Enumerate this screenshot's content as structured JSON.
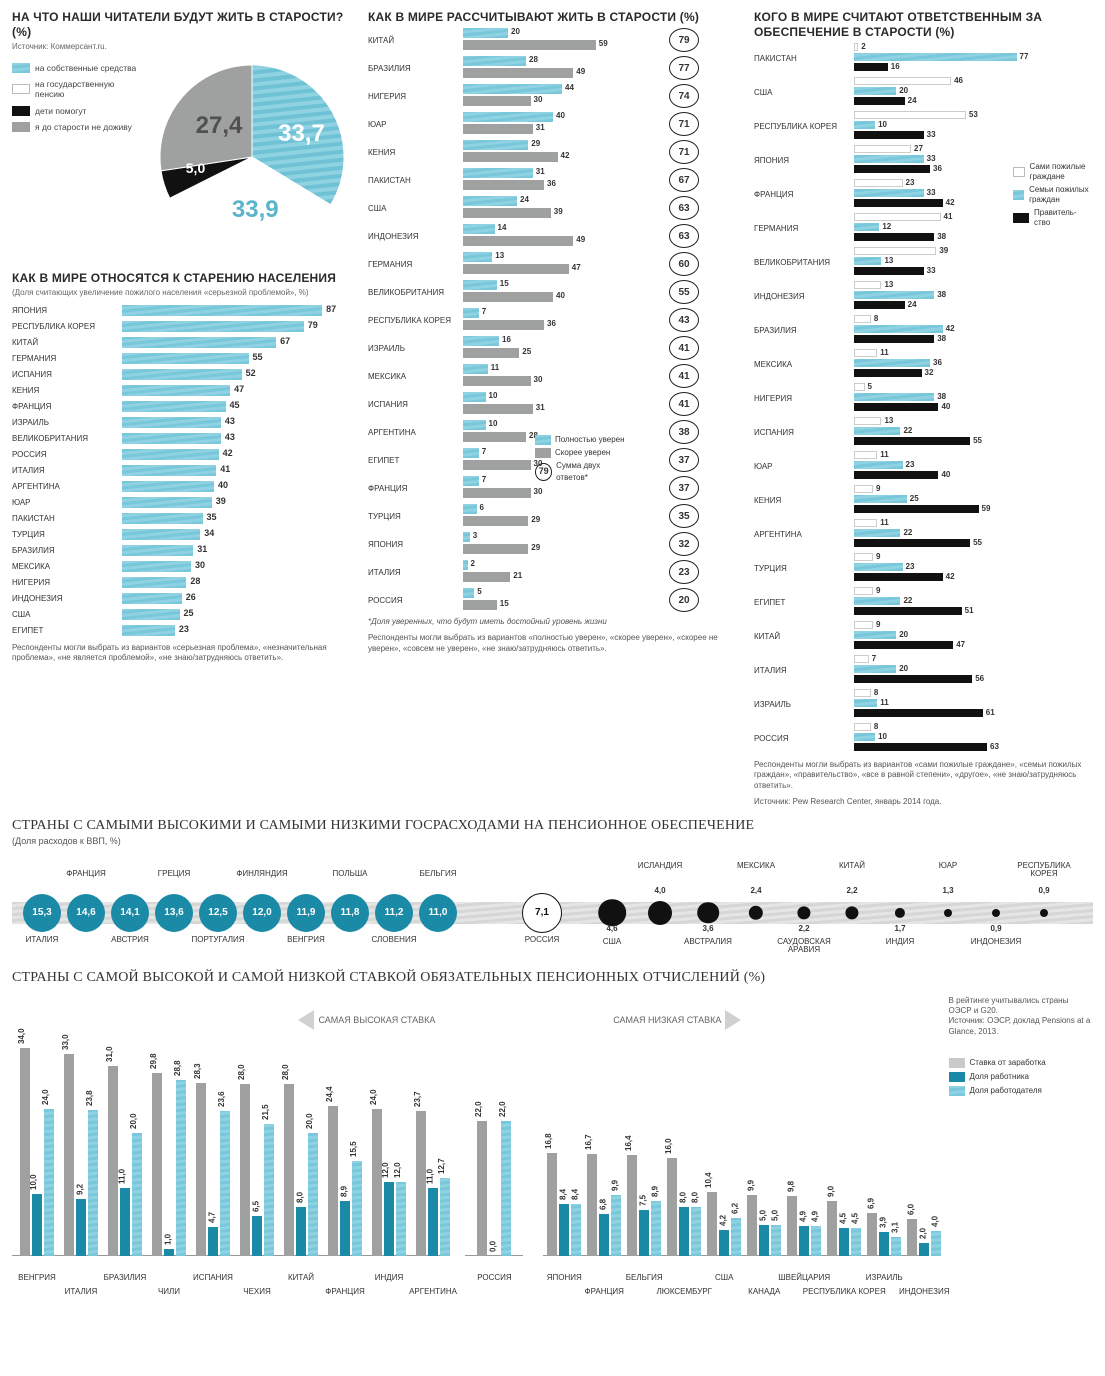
{
  "colors": {
    "wave": "#78c7db",
    "wave_light": "#8fd2e2",
    "gray": "#9ea1a0",
    "black": "#111111",
    "white": "#ffffff",
    "blue_solid": "#1b8aa6",
    "bg": "#ffffff",
    "text": "#333333"
  },
  "pie": {
    "title": "НА ЧТО НАШИ ЧИТАТЕЛИ БУДУТ ЖИТЬ В СТАРОСТИ? (%)",
    "source": "Источник: Коммерсант.ru.",
    "slices": [
      {
        "label": "на собственные средства",
        "value": 33.7,
        "fill": "wave"
      },
      {
        "label": "на государственную пенсию",
        "value": 33.9,
        "fill": "white"
      },
      {
        "label": "дети помогут",
        "value": 5.0,
        "fill": "black"
      },
      {
        "label": "я до старости не доживу",
        "value": 27.4,
        "fill": "gray"
      }
    ]
  },
  "aging": {
    "title": "КАК В МИРЕ ОТНОСЯТСЯ К СТАРЕНИЮ НАСЕЛЕНИЯ",
    "sub": "(Доля считающих увеличение пожилого населения «серьезной проблемой», %)",
    "max": 100,
    "bars": [
      {
        "c": "ЯПОНИЯ",
        "v": 87
      },
      {
        "c": "РЕСПУБЛИКА КОРЕЯ",
        "v": 79
      },
      {
        "c": "КИТАЙ",
        "v": 67
      },
      {
        "c": "ГЕРМАНИЯ",
        "v": 55
      },
      {
        "c": "ИСПАНИЯ",
        "v": 52
      },
      {
        "c": "КЕНИЯ",
        "v": 47
      },
      {
        "c": "ФРАНЦИЯ",
        "v": 45
      },
      {
        "c": "ИЗРАИЛЬ",
        "v": 43
      },
      {
        "c": "ВЕЛИКОБРИТАНИЯ",
        "v": 43
      },
      {
        "c": "РОССИЯ",
        "v": 42
      },
      {
        "c": "ИТАЛИЯ",
        "v": 41
      },
      {
        "c": "АРГЕНТИНА",
        "v": 40
      },
      {
        "c": "ЮАР",
        "v": 39
      },
      {
        "c": "ПАКИСТАН",
        "v": 35
      },
      {
        "c": "ТУРЦИЯ",
        "v": 34
      },
      {
        "c": "БРАЗИЛИЯ",
        "v": 31
      },
      {
        "c": "МЕКСИКА",
        "v": 30
      },
      {
        "c": "НИГЕРИЯ",
        "v": 28
      },
      {
        "c": "ИНДОНЕЗИЯ",
        "v": 26
      },
      {
        "c": "США",
        "v": 25
      },
      {
        "c": "ЕГИПЕТ",
        "v": 23
      }
    ],
    "footnote": "Респонденты могли выбрать из вариантов «серьезная проблема», «незначительная проблема», «не является проблемой», «не знаю/затрудняюсь ответить»."
  },
  "expect": {
    "title": "КАК В МИРЕ РАССЧИТЫВАЮТ ЖИТЬ В СТАРОСТИ (%)",
    "max": 80,
    "legend": {
      "a": "Полностью уверен",
      "b": "Скорее уверен",
      "sum": "Сумма двух ответов*",
      "sum_icon": "79"
    },
    "bars": [
      {
        "c": "КИТАЙ",
        "a": 20,
        "b": 59,
        "s": 79
      },
      {
        "c": "БРАЗИЛИЯ",
        "a": 28,
        "b": 49,
        "s": 77
      },
      {
        "c": "НИГЕРИЯ",
        "a": 44,
        "b": 30,
        "s": 74
      },
      {
        "c": "ЮАР",
        "a": 40,
        "b": 31,
        "s": 71
      },
      {
        "c": "КЕНИЯ",
        "a": 29,
        "b": 42,
        "s": 71
      },
      {
        "c": "ПАКИСТАН",
        "a": 31,
        "b": 36,
        "s": 67
      },
      {
        "c": "США",
        "a": 24,
        "b": 39,
        "s": 63
      },
      {
        "c": "ИНДОНЕЗИЯ",
        "a": 14,
        "b": 49,
        "s": 63
      },
      {
        "c": "ГЕРМАНИЯ",
        "a": 13,
        "b": 47,
        "s": 60
      },
      {
        "c": "ВЕЛИКОБРИТАНИЯ",
        "a": 15,
        "b": 40,
        "s": 55
      },
      {
        "c": "РЕСПУБЛИКА КОРЕЯ",
        "a": 7,
        "b": 36,
        "s": 43
      },
      {
        "c": "ИЗРАИЛЬ",
        "a": 16,
        "b": 25,
        "s": 41
      },
      {
        "c": "МЕКСИКА",
        "a": 11,
        "b": 30,
        "s": 41
      },
      {
        "c": "ИСПАНИЯ",
        "a": 10,
        "b": 31,
        "s": 41
      },
      {
        "c": "АРГЕНТИНА",
        "a": 10,
        "b": 28,
        "s": 38
      },
      {
        "c": "ЕГИПЕТ",
        "a": 7,
        "b": 30,
        "s": 37
      },
      {
        "c": "ФРАНЦИЯ",
        "a": 7,
        "b": 30,
        "s": 37
      },
      {
        "c": "ТУРЦИЯ",
        "a": 6,
        "b": 29,
        "s": 35
      },
      {
        "c": "ЯПОНИЯ",
        "a": 3,
        "b": 29,
        "s": 32
      },
      {
        "c": "ИТАЛИЯ",
        "a": 2,
        "b": 21,
        "s": 23
      },
      {
        "c": "РОССИЯ",
        "a": 5,
        "b": 15,
        "s": 20
      }
    ],
    "star": "*Доля уверенных, что будут иметь достойный уровень жизни",
    "footnote": "Респонденты могли выбрать из вариантов «полностью уверен», «скорее уверен», «скорее не уверен», «совсем не уверен», «не знаю/затрудняюсь ответить»."
  },
  "responsible": {
    "title": "КОГО В МИРЕ СЧИТАЮТ ОТВЕТСТВЕННЫМ ЗА ОБЕСПЕЧЕНИЕ В СТАРОСТИ (%)",
    "max": 90,
    "legend": {
      "a": "Сами пожилые граждане",
      "b": "Семьи пожилых граждан",
      "c": "Правитель-\nство"
    },
    "bars": [
      {
        "c": "ПАКИСТАН",
        "a": 2,
        "b": 77,
        "g": 16
      },
      {
        "c": "США",
        "a": 46,
        "b": 20,
        "g": 24
      },
      {
        "c": "РЕСПУБЛИКА КОРЕЯ",
        "a": 53,
        "b": 10,
        "g": 33
      },
      {
        "c": "ЯПОНИЯ",
        "a": 27,
        "b": 33,
        "g": 36
      },
      {
        "c": "ФРАНЦИЯ",
        "a": 23,
        "b": 33,
        "g": 42
      },
      {
        "c": "ГЕРМАНИЯ",
        "a": 41,
        "b": 12,
        "g": 38
      },
      {
        "c": "ВЕЛИКОБРИТАНИЯ",
        "a": 39,
        "b": 13,
        "g": 33
      },
      {
        "c": "ИНДОНЕЗИЯ",
        "a": 13,
        "b": 38,
        "g": 24
      },
      {
        "c": "БРАЗИЛИЯ",
        "a": 8,
        "b": 42,
        "g": 38
      },
      {
        "c": "МЕКСИКА",
        "a": 11,
        "b": 36,
        "g": 32
      },
      {
        "c": "НИГЕРИЯ",
        "a": 5,
        "b": 38,
        "g": 40
      },
      {
        "c": "ИСПАНИЯ",
        "a": 13,
        "b": 22,
        "g": 55
      },
      {
        "c": "ЮАР",
        "a": 11,
        "b": 23,
        "g": 40
      },
      {
        "c": "КЕНИЯ",
        "a": 9,
        "b": 25,
        "g": 59
      },
      {
        "c": "АРГЕНТИНА",
        "a": 11,
        "b": 22,
        "g": 55
      },
      {
        "c": "ТУРЦИЯ",
        "a": 9,
        "b": 23,
        "g": 42
      },
      {
        "c": "ЕГИПЕТ",
        "a": 9,
        "b": 22,
        "g": 51
      },
      {
        "c": "КИТАЙ",
        "a": 9,
        "b": 20,
        "g": 47
      },
      {
        "c": "ИТАЛИЯ",
        "a": 7,
        "b": 20,
        "g": 56
      },
      {
        "c": "ИЗРАИЛЬ",
        "a": 8,
        "b": 11,
        "g": 61
      },
      {
        "c": "РОССИЯ",
        "a": 8,
        "b": 10,
        "g": 63
      }
    ],
    "footnote": "Респонденты могли выбрать из вариантов «сами пожилые граждане», «семьи пожилых граждан», «правительство», «все в равной степени», «другое», «не знаю/затрудняюсь ответить».",
    "source": "Источник: Pew Research Center, январь 2014 года."
  },
  "gdp": {
    "title": "СТРАНЫ С САМЫМИ ВЫСОКИМИ И САМЫМИ НИЗКИМИ ГОСРАСХОДАМИ НА ПЕНСИОННОЕ ОБЕСПЕЧЕНИЕ",
    "sub": "(Доля расходов к ВВП, %)",
    "high": [
      {
        "c": "ИТАЛИЯ",
        "v": 15.3,
        "pos": "b"
      },
      {
        "c": "ФРАНЦИЯ",
        "v": 14.6,
        "pos": "t"
      },
      {
        "c": "АВСТРИЯ",
        "v": 14.1,
        "pos": "b"
      },
      {
        "c": "ГРЕЦИЯ",
        "v": 13.6,
        "pos": "t"
      },
      {
        "c": "ПОРТУГАЛИЯ",
        "v": 12.5,
        "pos": "b"
      },
      {
        "c": "ФИНЛЯНДИЯ",
        "v": 12.0,
        "pos": "t"
      },
      {
        "c": "ВЕНГРИЯ",
        "v": 11.9,
        "pos": "b"
      },
      {
        "c": "ПОЛЬША",
        "v": 11.8,
        "pos": "t"
      },
      {
        "c": "СЛОВЕНИЯ",
        "v": 11.2,
        "pos": "b"
      },
      {
        "c": "БЕЛЬГИЯ",
        "v": 11.0,
        "pos": "t"
      }
    ],
    "mid": {
      "c": "РОССИЯ",
      "v": 7.1
    },
    "low": [
      {
        "c": "США",
        "v": 4.6,
        "pos": "b"
      },
      {
        "c": "ИСЛАНДИЯ",
        "v": 4.0,
        "pos": "t"
      },
      {
        "c": "АВСТРАЛИЯ",
        "v": 3.6,
        "pos": "b"
      },
      {
        "c": "МЕКСИКА",
        "v": 2.4,
        "pos": "t"
      },
      {
        "c": "САУДОВСКАЯ АРАВИЯ",
        "v": 2.2,
        "pos": "b"
      },
      {
        "c": "КИТАЙ",
        "v": 2.2,
        "pos": "t"
      },
      {
        "c": "ИНДИЯ",
        "v": 1.7,
        "pos": "b"
      },
      {
        "c": "ЮАР",
        "v": 1.3,
        "pos": "t"
      },
      {
        "c": "ИНДОНЕЗИЯ",
        "v": 0.9,
        "pos": "b"
      },
      {
        "c": "РЕСПУБЛИКА КОРЕЯ",
        "v": 0.9,
        "pos": "t"
      }
    ]
  },
  "rates": {
    "title": "СТРАНЫ С САМОЙ ВЫСОКОЙ И САМОЙ НИЗКОЙ СТАВКОЙ ОБЯЗАТЕЛЬНЫХ ПЕНСИОННЫХ ОТЧИСЛЕНИЙ (%)",
    "max": 36,
    "legend": {
      "total": "Ставка от заработка",
      "worker": "Доля работника",
      "employer": "Доля работодателя"
    },
    "high_label": "САМАЯ ВЫСОКАЯ СТАВКА",
    "low_label": "САМАЯ НИЗКАЯ СТАВКА",
    "note": "В рейтинге учитывались страны ОЭСР и G20.\nИсточник: ОЭСР, доклад Pensions at a Glance, 2013.",
    "high": [
      {
        "c": "ВЕНГРИЯ",
        "t": 34.0,
        "w": 10.0,
        "e": 24.0,
        "pos": "b"
      },
      {
        "c": "ИТАЛИЯ",
        "t": 33.0,
        "w": 9.2,
        "e": 23.8,
        "pos": "t"
      },
      {
        "c": "БРАЗИЛИЯ",
        "t": 31.0,
        "w": 11.0,
        "e": 20.0,
        "pos": "b"
      },
      {
        "c": "ЧИЛИ",
        "t": 29.8,
        "w": 1.0,
        "e": 28.8,
        "pos": "t"
      },
      {
        "c": "ИСПАНИЯ",
        "t": 28.3,
        "w": 4.7,
        "e": 23.6,
        "pos": "b"
      },
      {
        "c": "ЧЕХИЯ",
        "t": 28.0,
        "w": 6.5,
        "e": 21.5,
        "pos": "t"
      },
      {
        "c": "КИТАЙ",
        "t": 28.0,
        "w": 8.0,
        "e": 20.0,
        "pos": "b"
      },
      {
        "c": "ФРАНЦИЯ",
        "t": 24.4,
        "w": 8.9,
        "e": 15.5,
        "pos": "t"
      },
      {
        "c": "ИНДИЯ",
        "t": 24.0,
        "w": 12.0,
        "e": 12.0,
        "pos": "b"
      },
      {
        "c": "АРГЕНТИНА",
        "t": 23.7,
        "w": 11.0,
        "e": 12.7,
        "pos": "t"
      }
    ],
    "mid": {
      "c": "РОССИЯ",
      "t": 22.0,
      "w": 0.0,
      "e": 22.0
    },
    "low": [
      {
        "c": "ЯПОНИЯ",
        "t": 16.8,
        "w": 8.4,
        "e": 8.4,
        "pos": "b"
      },
      {
        "c": "ФРАНЦИЯ",
        "t": 16.7,
        "w": 6.8,
        "e": 9.9,
        "pos": "t"
      },
      {
        "c": "БЕЛЬГИЯ",
        "t": 16.4,
        "w": 7.5,
        "e": 8.9,
        "pos": "b"
      },
      {
        "c": "ЛЮКСЕМБУРГ",
        "t": 16.0,
        "w": 8.0,
        "e": 8.0,
        "pos": "t"
      },
      {
        "c": "США",
        "t": 10.4,
        "w": 4.2,
        "e": 6.2,
        "pos": "b"
      },
      {
        "c": "КАНАДА",
        "t": 9.9,
        "w": 5.0,
        "e": 5.0,
        "pos": "t"
      },
      {
        "c": "ШВЕЙЦАРИЯ",
        "t": 9.8,
        "w": 4.9,
        "e": 4.9,
        "pos": "b"
      },
      {
        "c": "РЕСПУБЛИКА КОРЕЯ",
        "t": 9.0,
        "w": 4.5,
        "e": 4.5,
        "pos": "t"
      },
      {
        "c": "ИЗРАИЛЬ",
        "t": 6.9,
        "w": 3.9,
        "e": 3.1,
        "pos": "b"
      },
      {
        "c": "ИНДОНЕЗИЯ",
        "t": 6.0,
        "w": 2.0,
        "e": 4.0,
        "pos": "t"
      }
    ]
  }
}
